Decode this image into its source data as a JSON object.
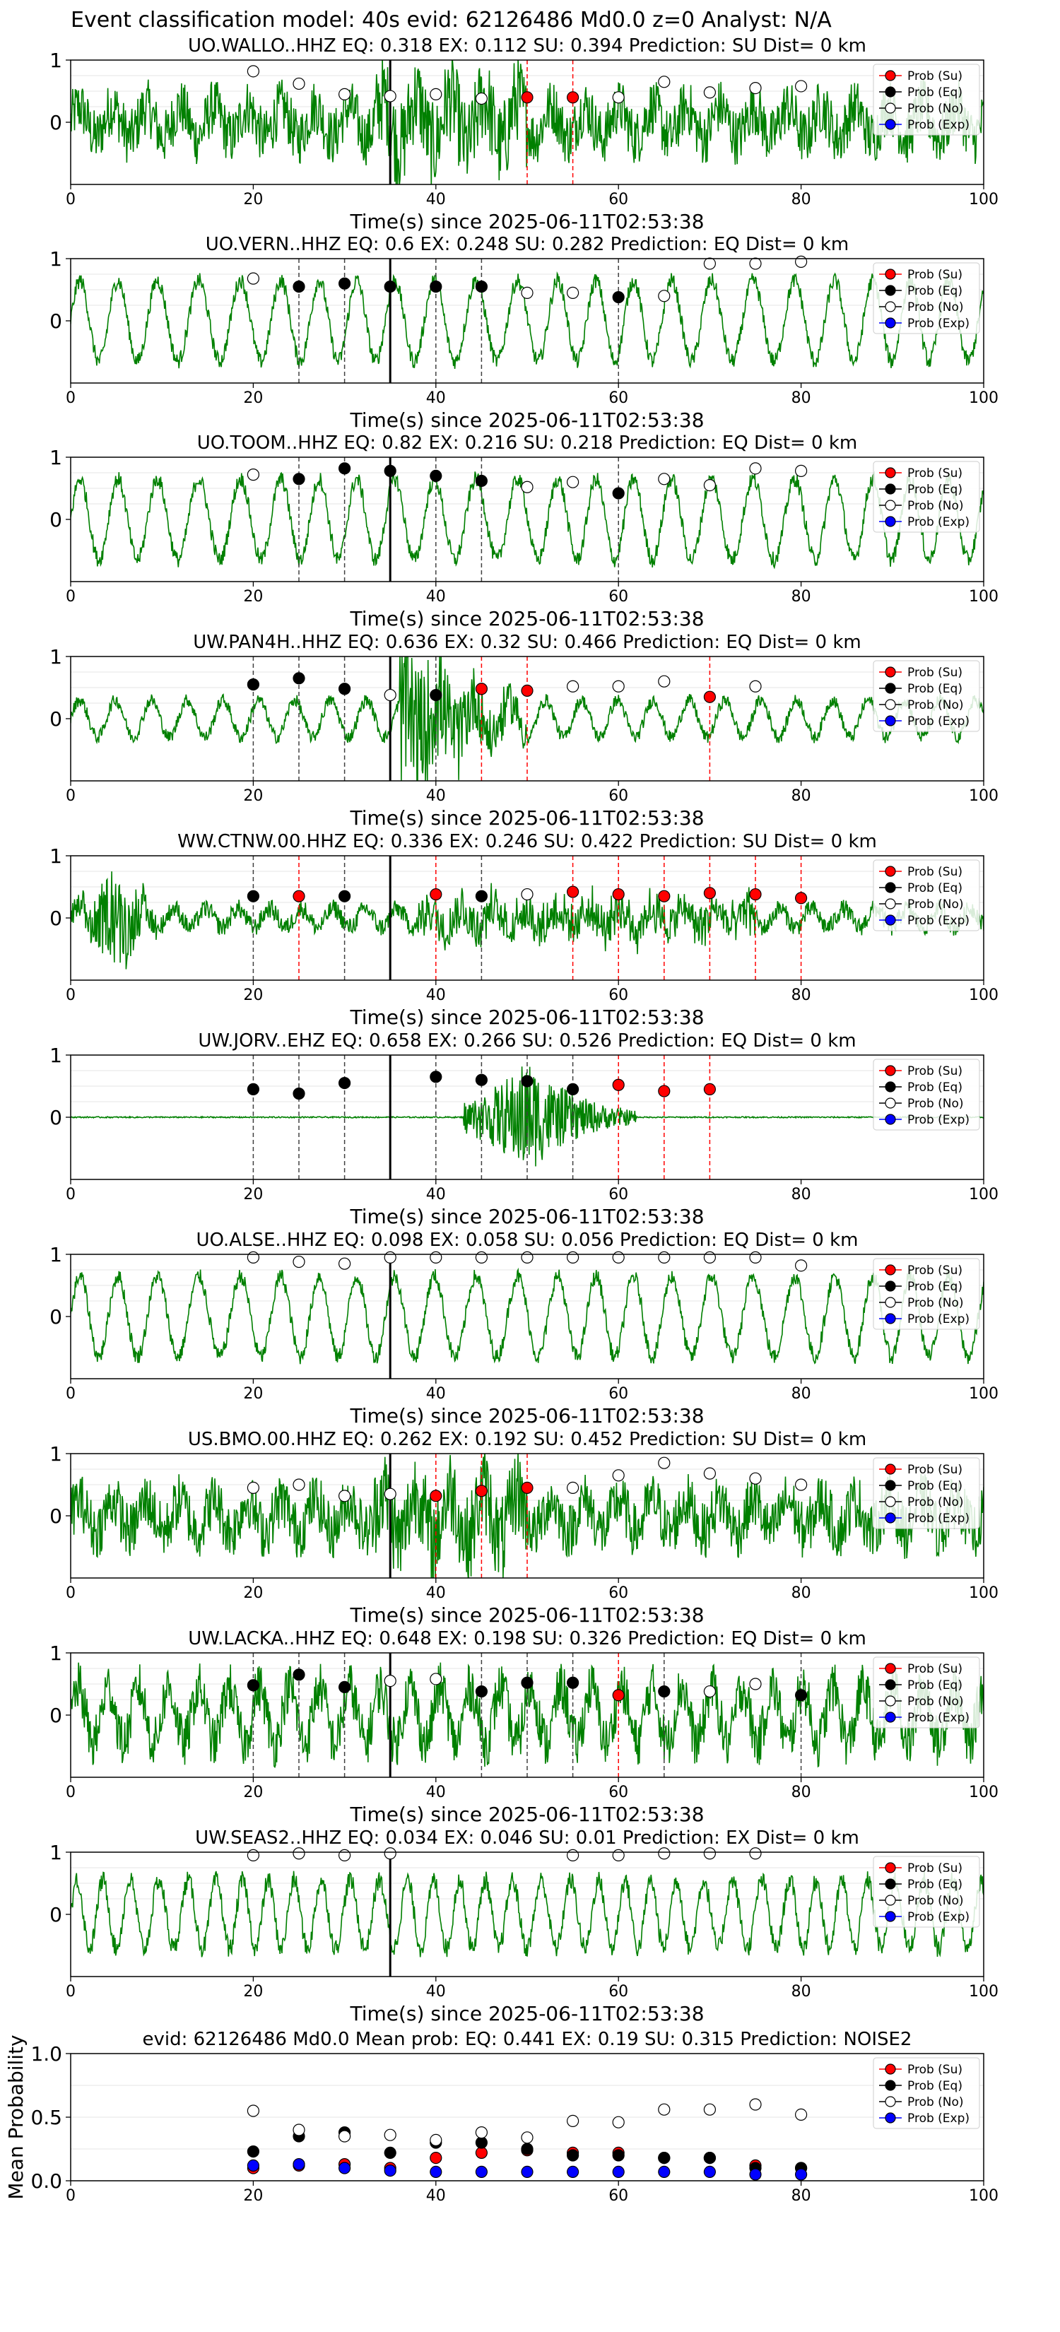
{
  "figure": {
    "suptitle": "Event classification model: 40s evid: 62126486 Md0.0 z=0 Analyst: N/A"
  },
  "legend": {
    "entries": [
      "Prob (Su)",
      "Prob (Eq)",
      "Prob (No)",
      "Prob (Exp)"
    ],
    "placement": "top-right"
  },
  "colors": {
    "waveform": "#008000",
    "su": "#ff0000",
    "eq": "#000000",
    "no": "#ffffff",
    "exp": "#0000ff",
    "pick_line": "#000000",
    "su_window_line": "#ff0000",
    "eq_window_line": "#404040"
  },
  "chart_data": [
    {
      "type": "line",
      "station": "UO.WALLO..HHZ",
      "title": "UO.WALLO..HHZ   EQ: 0.318  EX: 0.112  SU: 0.394   Prediction: SU    Dist= 0 km",
      "xlabel": "Time(s) since 2025-06-11T02:53:38",
      "ylabel": "",
      "xlim": [
        0,
        100
      ],
      "ylim": [
        -1,
        1
      ],
      "xticks": [
        0,
        20,
        40,
        60,
        80,
        100
      ],
      "yticks": [
        0,
        1
      ],
      "pick_time": 35,
      "waveform": "noisy",
      "prediction": "SU",
      "points": [
        {
          "x": 20,
          "y": 0.82,
          "class": "no"
        },
        {
          "x": 25,
          "y": 0.62,
          "class": "no"
        },
        {
          "x": 30,
          "y": 0.45,
          "class": "no"
        },
        {
          "x": 35,
          "y": 0.42,
          "class": "no"
        },
        {
          "x": 40,
          "y": 0.45,
          "class": "no"
        },
        {
          "x": 45,
          "y": 0.38,
          "class": "no"
        },
        {
          "x": 50,
          "y": 0.4,
          "class": "su"
        },
        {
          "x": 55,
          "y": 0.4,
          "class": "su"
        },
        {
          "x": 60,
          "y": 0.4,
          "class": "no"
        },
        {
          "x": 65,
          "y": 0.65,
          "class": "no"
        },
        {
          "x": 70,
          "y": 0.48,
          "class": "no"
        },
        {
          "x": 75,
          "y": 0.55,
          "class": "no"
        },
        {
          "x": 80,
          "y": 0.58,
          "class": "no"
        }
      ]
    },
    {
      "type": "line",
      "station": "UO.VERN..HHZ",
      "title": "UO.VERN..HHZ   EQ: 0.6  EX: 0.248  SU: 0.282   Prediction: EQ    Dist= 0 km",
      "xlabel": "Time(s) since 2025-06-11T02:53:38",
      "ylabel": "",
      "xlim": [
        0,
        100
      ],
      "ylim": [
        -1,
        1
      ],
      "xticks": [
        0,
        20,
        40,
        60,
        80,
        100
      ],
      "yticks": [
        0,
        1
      ],
      "pick_time": 35,
      "waveform": "oscillating",
      "prediction": "EQ",
      "points": [
        {
          "x": 20,
          "y": 0.68,
          "class": "no"
        },
        {
          "x": 25,
          "y": 0.55,
          "class": "eq"
        },
        {
          "x": 30,
          "y": 0.6,
          "class": "eq"
        },
        {
          "x": 35,
          "y": 0.55,
          "class": "eq"
        },
        {
          "x": 40,
          "y": 0.55,
          "class": "eq"
        },
        {
          "x": 45,
          "y": 0.55,
          "class": "eq"
        },
        {
          "x": 50,
          "y": 0.45,
          "class": "no"
        },
        {
          "x": 55,
          "y": 0.45,
          "class": "no"
        },
        {
          "x": 60,
          "y": 0.38,
          "class": "eq"
        },
        {
          "x": 65,
          "y": 0.4,
          "class": "no"
        },
        {
          "x": 70,
          "y": 0.92,
          "class": "no"
        },
        {
          "x": 75,
          "y": 0.92,
          "class": "no"
        },
        {
          "x": 80,
          "y": 0.95,
          "class": "no"
        }
      ]
    },
    {
      "type": "line",
      "station": "UO.TOOM..HHZ",
      "title": "UO.TOOM..HHZ   EQ: 0.82  EX: 0.216  SU: 0.218   Prediction: EQ    Dist= 0 km",
      "xlabel": "Time(s) since 2025-06-11T02:53:38",
      "ylabel": "",
      "xlim": [
        0,
        100
      ],
      "ylim": [
        -1,
        1
      ],
      "xticks": [
        0,
        20,
        40,
        60,
        80,
        100
      ],
      "yticks": [
        0,
        1
      ],
      "pick_time": 35,
      "waveform": "oscillating",
      "prediction": "EQ",
      "points": [
        {
          "x": 20,
          "y": 0.72,
          "class": "no"
        },
        {
          "x": 25,
          "y": 0.65,
          "class": "eq"
        },
        {
          "x": 30,
          "y": 0.82,
          "class": "eq"
        },
        {
          "x": 35,
          "y": 0.78,
          "class": "eq"
        },
        {
          "x": 40,
          "y": 0.7,
          "class": "eq"
        },
        {
          "x": 45,
          "y": 0.62,
          "class": "eq"
        },
        {
          "x": 50,
          "y": 0.52,
          "class": "no"
        },
        {
          "x": 55,
          "y": 0.6,
          "class": "no"
        },
        {
          "x": 60,
          "y": 0.42,
          "class": "eq"
        },
        {
          "x": 65,
          "y": 0.65,
          "class": "no"
        },
        {
          "x": 70,
          "y": 0.55,
          "class": "no"
        },
        {
          "x": 75,
          "y": 0.82,
          "class": "no"
        },
        {
          "x": 80,
          "y": 0.78,
          "class": "no"
        }
      ]
    },
    {
      "type": "line",
      "station": "UW.PAN4H..HHZ",
      "title": "UW.PAN4H..HHZ   EQ: 0.636  EX: 0.32  SU: 0.466   Prediction: EQ    Dist= 0 km",
      "xlabel": "Time(s) since 2025-06-11T02:53:38",
      "ylabel": "",
      "xlim": [
        0,
        100
      ],
      "ylim": [
        -1,
        1
      ],
      "xticks": [
        0,
        20,
        40,
        60,
        80,
        100
      ],
      "yticks": [
        0,
        1
      ],
      "pick_time": 35,
      "waveform": "burst-mid",
      "prediction": "EQ",
      "points": [
        {
          "x": 20,
          "y": 0.55,
          "class": "eq"
        },
        {
          "x": 25,
          "y": 0.65,
          "class": "eq"
        },
        {
          "x": 30,
          "y": 0.48,
          "class": "eq"
        },
        {
          "x": 35,
          "y": 0.38,
          "class": "no"
        },
        {
          "x": 40,
          "y": 0.38,
          "class": "eq"
        },
        {
          "x": 45,
          "y": 0.48,
          "class": "su"
        },
        {
          "x": 50,
          "y": 0.45,
          "class": "su"
        },
        {
          "x": 55,
          "y": 0.52,
          "class": "no"
        },
        {
          "x": 60,
          "y": 0.52,
          "class": "no"
        },
        {
          "x": 65,
          "y": 0.6,
          "class": "no"
        },
        {
          "x": 70,
          "y": 0.35,
          "class": "su"
        },
        {
          "x": 75,
          "y": 0.52,
          "class": "no"
        }
      ]
    },
    {
      "type": "line",
      "station": "WW.CTNW.00.HHZ",
      "title": "WW.CTNW.00.HHZ   EQ: 0.336  EX: 0.246  SU: 0.422   Prediction: SU    Dist= 0 km",
      "xlabel": "Time(s) since 2025-06-11T02:53:38",
      "ylabel": "",
      "xlim": [
        0,
        100
      ],
      "ylim": [
        -1,
        1
      ],
      "xticks": [
        0,
        20,
        40,
        60,
        80,
        100
      ],
      "yticks": [
        0,
        1
      ],
      "pick_time": 35,
      "waveform": "burst-early",
      "prediction": "SU",
      "points": [
        {
          "x": 20,
          "y": 0.35,
          "class": "eq"
        },
        {
          "x": 25,
          "y": 0.35,
          "class": "su"
        },
        {
          "x": 30,
          "y": 0.35,
          "class": "eq"
        },
        {
          "x": 40,
          "y": 0.38,
          "class": "su"
        },
        {
          "x": 45,
          "y": 0.35,
          "class": "eq"
        },
        {
          "x": 50,
          "y": 0.38,
          "class": "no"
        },
        {
          "x": 55,
          "y": 0.42,
          "class": "su"
        },
        {
          "x": 60,
          "y": 0.38,
          "class": "su"
        },
        {
          "x": 65,
          "y": 0.35,
          "class": "su"
        },
        {
          "x": 70,
          "y": 0.4,
          "class": "su"
        },
        {
          "x": 75,
          "y": 0.38,
          "class": "su"
        },
        {
          "x": 80,
          "y": 0.32,
          "class": "su"
        }
      ]
    },
    {
      "type": "line",
      "station": "UW.JORV..EHZ",
      "title": "UW.JORV..EHZ   EQ: 0.658  EX: 0.266  SU: 0.526   Prediction: EQ    Dist= 0 km",
      "xlabel": "Time(s) since 2025-06-11T02:53:38",
      "ylabel": "",
      "xlim": [
        0,
        100
      ],
      "ylim": [
        -1,
        1
      ],
      "xticks": [
        0,
        20,
        40,
        60,
        80,
        100
      ],
      "yticks": [
        0,
        1
      ],
      "pick_time": 35,
      "waveform": "quiet-burst",
      "prediction": "EQ",
      "points": [
        {
          "x": 20,
          "y": 0.45,
          "class": "eq"
        },
        {
          "x": 25,
          "y": 0.38,
          "class": "eq"
        },
        {
          "x": 30,
          "y": 0.55,
          "class": "eq"
        },
        {
          "x": 40,
          "y": 0.65,
          "class": "eq"
        },
        {
          "x": 45,
          "y": 0.6,
          "class": "eq"
        },
        {
          "x": 50,
          "y": 0.58,
          "class": "eq"
        },
        {
          "x": 55,
          "y": 0.45,
          "class": "eq"
        },
        {
          "x": 60,
          "y": 0.52,
          "class": "su"
        },
        {
          "x": 65,
          "y": 0.42,
          "class": "su"
        },
        {
          "x": 70,
          "y": 0.45,
          "class": "su"
        }
      ]
    },
    {
      "type": "line",
      "station": "UO.ALSE..HHZ",
      "title": "UO.ALSE..HHZ   EQ: 0.098  EX: 0.058  SU: 0.056   Prediction: EQ    Dist= 0 km",
      "xlabel": "Time(s) since 2025-06-11T02:53:38",
      "ylabel": "",
      "xlim": [
        0,
        100
      ],
      "ylim": [
        -1,
        1
      ],
      "xticks": [
        0,
        20,
        40,
        60,
        80,
        100
      ],
      "yticks": [
        0,
        1
      ],
      "pick_time": 35,
      "waveform": "oscillating",
      "prediction": "EQ",
      "points": [
        {
          "x": 20,
          "y": 0.95,
          "class": "no"
        },
        {
          "x": 25,
          "y": 0.88,
          "class": "no"
        },
        {
          "x": 30,
          "y": 0.85,
          "class": "no"
        },
        {
          "x": 35,
          "y": 0.95,
          "class": "no"
        },
        {
          "x": 40,
          "y": 0.95,
          "class": "no"
        },
        {
          "x": 45,
          "y": 0.95,
          "class": "no"
        },
        {
          "x": 50,
          "y": 0.95,
          "class": "no"
        },
        {
          "x": 55,
          "y": 0.95,
          "class": "no"
        },
        {
          "x": 60,
          "y": 0.95,
          "class": "no"
        },
        {
          "x": 65,
          "y": 0.95,
          "class": "no"
        },
        {
          "x": 70,
          "y": 0.95,
          "class": "no"
        },
        {
          "x": 75,
          "y": 0.95,
          "class": "no"
        },
        {
          "x": 80,
          "y": 0.82,
          "class": "no"
        }
      ]
    },
    {
      "type": "line",
      "station": "US.BMO.00.HHZ",
      "title": "US.BMO.00.HHZ   EQ: 0.262  EX: 0.192  SU: 0.452   Prediction: SU    Dist= 0 km",
      "xlabel": "Time(s) since 2025-06-11T02:53:38",
      "ylabel": "",
      "xlim": [
        0,
        100
      ],
      "ylim": [
        -1,
        1
      ],
      "xticks": [
        0,
        20,
        40,
        60,
        80,
        100
      ],
      "yticks": [
        0,
        1
      ],
      "pick_time": 35,
      "waveform": "noisy",
      "prediction": "SU",
      "points": [
        {
          "x": 20,
          "y": 0.45,
          "class": "no"
        },
        {
          "x": 25,
          "y": 0.5,
          "class": "no"
        },
        {
          "x": 30,
          "y": 0.32,
          "class": "no"
        },
        {
          "x": 35,
          "y": 0.35,
          "class": "no"
        },
        {
          "x": 40,
          "y": 0.32,
          "class": "su"
        },
        {
          "x": 45,
          "y": 0.4,
          "class": "su"
        },
        {
          "x": 50,
          "y": 0.45,
          "class": "su"
        },
        {
          "x": 55,
          "y": 0.45,
          "class": "no"
        },
        {
          "x": 60,
          "y": 0.65,
          "class": "no"
        },
        {
          "x": 65,
          "y": 0.85,
          "class": "no"
        },
        {
          "x": 70,
          "y": 0.68,
          "class": "no"
        },
        {
          "x": 75,
          "y": 0.6,
          "class": "no"
        },
        {
          "x": 80,
          "y": 0.5,
          "class": "no"
        }
      ]
    },
    {
      "type": "line",
      "station": "UW.LACKA..HHZ",
      "title": "UW.LACKA..HHZ   EQ: 0.648  EX: 0.198  SU: 0.326   Prediction: EQ    Dist= 0 km",
      "xlabel": "Time(s) since 2025-06-11T02:53:38",
      "ylabel": "",
      "xlim": [
        0,
        100
      ],
      "ylim": [
        -1,
        1
      ],
      "xticks": [
        0,
        20,
        40,
        60,
        80,
        100
      ],
      "yticks": [
        0,
        1
      ],
      "pick_time": 35,
      "waveform": "noisy-osc",
      "prediction": "EQ",
      "points": [
        {
          "x": 20,
          "y": 0.48,
          "class": "eq"
        },
        {
          "x": 25,
          "y": 0.65,
          "class": "eq"
        },
        {
          "x": 30,
          "y": 0.45,
          "class": "eq"
        },
        {
          "x": 35,
          "y": 0.55,
          "class": "no"
        },
        {
          "x": 40,
          "y": 0.58,
          "class": "no"
        },
        {
          "x": 45,
          "y": 0.38,
          "class": "eq"
        },
        {
          "x": 50,
          "y": 0.52,
          "class": "eq"
        },
        {
          "x": 55,
          "y": 0.52,
          "class": "eq"
        },
        {
          "x": 60,
          "y": 0.32,
          "class": "su"
        },
        {
          "x": 65,
          "y": 0.38,
          "class": "eq"
        },
        {
          "x": 70,
          "y": 0.38,
          "class": "no"
        },
        {
          "x": 75,
          "y": 0.5,
          "class": "no"
        },
        {
          "x": 80,
          "y": 0.32,
          "class": "eq"
        }
      ]
    },
    {
      "type": "line",
      "station": "UW.SEAS2..HHZ",
      "title": "UW.SEAS2..HHZ   EQ: 0.034  EX: 0.046  SU: 0.01   Prediction: EX    Dist= 0 km",
      "xlabel": "Time(s) since 2025-06-11T02:53:38",
      "ylabel": "",
      "xlim": [
        0,
        100
      ],
      "ylim": [
        -1,
        1
      ],
      "xticks": [
        0,
        20,
        40,
        60,
        80,
        100
      ],
      "yticks": [
        0,
        1
      ],
      "pick_time": 35,
      "waveform": "oscillating-fast",
      "prediction": "EX",
      "points": [
        {
          "x": 20,
          "y": 0.95,
          "class": "no"
        },
        {
          "x": 25,
          "y": 0.98,
          "class": "no"
        },
        {
          "x": 30,
          "y": 0.95,
          "class": "no"
        },
        {
          "x": 35,
          "y": 0.98,
          "class": "no"
        },
        {
          "x": 55,
          "y": 0.95,
          "class": "no"
        },
        {
          "x": 60,
          "y": 0.95,
          "class": "no"
        },
        {
          "x": 65,
          "y": 0.98,
          "class": "no"
        },
        {
          "x": 70,
          "y": 0.98,
          "class": "no"
        },
        {
          "x": 75,
          "y": 0.98,
          "class": "no"
        }
      ]
    },
    {
      "type": "scatter",
      "station": "mean",
      "title": "evid: 62126486  Md0.0   Mean prob:   EQ: 0.441  EX: 0.19  SU: 0.315   Prediction: NOISE2",
      "xlabel": "",
      "ylabel": "Mean Probability",
      "xlim": [
        0,
        100
      ],
      "ylim": [
        0,
        1
      ],
      "xticks": [
        0,
        20,
        40,
        60,
        80,
        100
      ],
      "yticks": [
        0,
        0.5,
        1
      ],
      "ytick_labels": [
        "0.0",
        "0.5",
        "1.0"
      ],
      "series": [
        {
          "name": "Prob (Su)",
          "class": "su",
          "x": [
            20,
            25,
            30,
            35,
            40,
            45,
            50,
            55,
            60,
            65,
            70,
            75,
            80
          ],
          "y": [
            0.1,
            0.12,
            0.13,
            0.1,
            0.18,
            0.22,
            0.24,
            0.22,
            0.22,
            0.18,
            0.18,
            0.12,
            0.1
          ]
        },
        {
          "name": "Prob (Eq)",
          "class": "eq",
          "x": [
            20,
            25,
            30,
            35,
            40,
            45,
            50,
            55,
            60,
            65,
            70,
            75,
            80
          ],
          "y": [
            0.23,
            0.35,
            0.38,
            0.22,
            0.3,
            0.3,
            0.25,
            0.2,
            0.2,
            0.18,
            0.18,
            0.1,
            0.1
          ]
        },
        {
          "name": "Prob (No)",
          "class": "no",
          "x": [
            20,
            25,
            30,
            35,
            40,
            45,
            50,
            55,
            60,
            65,
            70,
            75,
            80
          ],
          "y": [
            0.55,
            0.4,
            0.35,
            0.36,
            0.32,
            0.38,
            0.34,
            0.47,
            0.46,
            0.56,
            0.56,
            0.6,
            0.52
          ]
        },
        {
          "name": "Prob (Exp)",
          "class": "exp",
          "x": [
            20,
            25,
            30,
            35,
            40,
            45,
            50,
            55,
            60,
            65,
            70,
            75,
            80
          ],
          "y": [
            0.12,
            0.13,
            0.1,
            0.08,
            0.07,
            0.07,
            0.07,
            0.07,
            0.07,
            0.07,
            0.07,
            0.05,
            0.05
          ]
        }
      ]
    }
  ]
}
